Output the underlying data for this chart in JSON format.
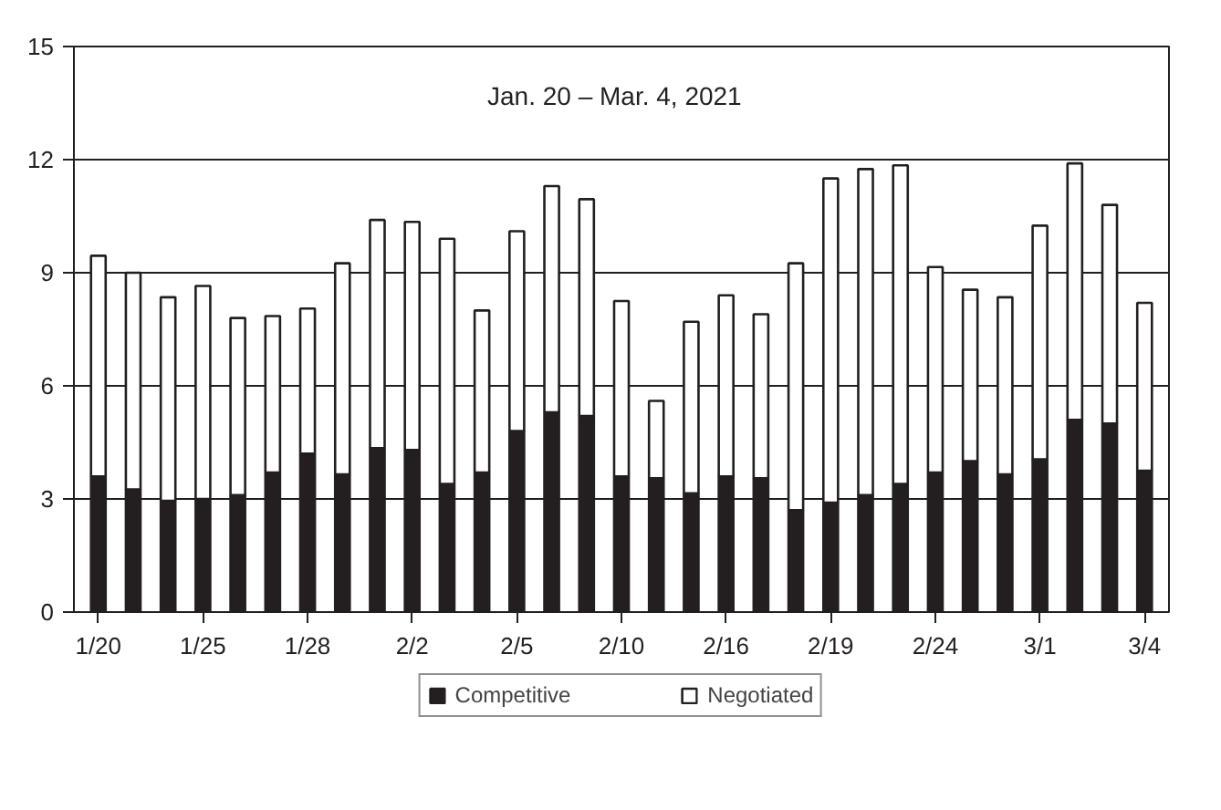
{
  "chart_data": {
    "type": "bar",
    "stacked": true,
    "categories": [
      "1/20",
      null,
      null,
      "1/25",
      null,
      null,
      "1/28",
      null,
      null,
      "2/2",
      null,
      null,
      "2/5",
      null,
      null,
      "2/10",
      null,
      null,
      "2/16",
      null,
      null,
      "2/19",
      null,
      null,
      "2/24",
      null,
      null,
      "3/1",
      null,
      null,
      "3/4"
    ],
    "series": [
      {
        "name": "Competitive",
        "color": "#231f20",
        "values": [
          3.6,
          3.25,
          2.95,
          3.0,
          3.1,
          3.7,
          4.2,
          3.65,
          4.35,
          4.3,
          3.4,
          3.7,
          4.8,
          5.3,
          5.2,
          3.6,
          3.55,
          3.15,
          3.6,
          3.55,
          2.7,
          2.9,
          3.1,
          3.4,
          3.7,
          4.0,
          3.65,
          4.05,
          5.1,
          5.0,
          3.75
        ]
      },
      {
        "name": "Negotiated",
        "color": "#ffffff",
        "values": [
          5.85,
          5.75,
          5.4,
          5.65,
          4.7,
          4.15,
          3.85,
          5.6,
          6.05,
          6.05,
          6.5,
          4.3,
          5.3,
          6.0,
          5.75,
          4.65,
          2.05,
          4.55,
          4.8,
          4.35,
          6.55,
          8.6,
          8.65,
          8.45,
          5.45,
          4.55,
          4.7,
          6.2,
          6.8,
          5.8,
          4.45
        ]
      }
    ],
    "ylim": [
      0,
      15
    ],
    "yticks": [
      0,
      3,
      6,
      9,
      12,
      15
    ],
    "grid": "y",
    "legend": "bottom",
    "annotations": [
      "Jan. 20 – Mar. 4, 2021"
    ]
  }
}
